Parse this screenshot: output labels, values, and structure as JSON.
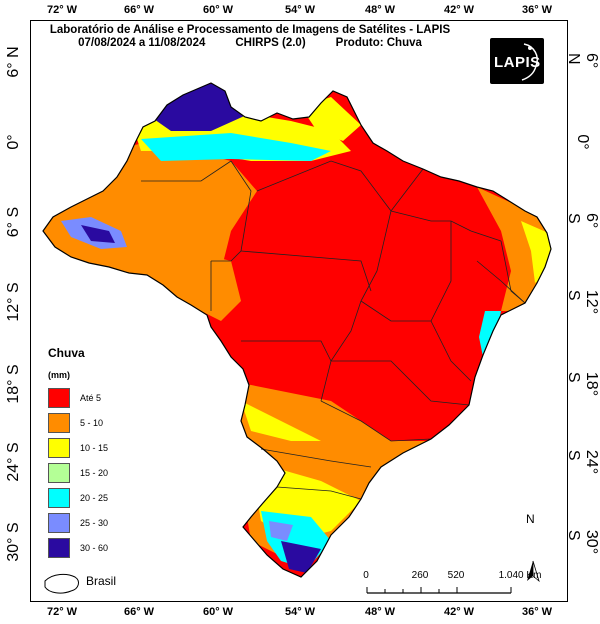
{
  "title": {
    "line1": "Laboratório de Análise e Processamento de Imagens de Satélites - LAPIS",
    "period": "07/08/2024  a 11/08/2024",
    "dataset": "CHIRPS (2.0)",
    "product": "Produto: Chuva"
  },
  "logo": {
    "text": "LAPIS"
  },
  "axes": {
    "longitude_ticks": [
      "72° W",
      "66° W",
      "60° W",
      "54° W",
      "48° W",
      "42° W",
      "36° W"
    ],
    "latitude_ticks": [
      "6° N",
      "0°",
      "6° S",
      "12° S",
      "18° S",
      "24° S",
      "30° S"
    ]
  },
  "legend": {
    "title": "Chuva",
    "unit": "(mm)",
    "classes": [
      {
        "label": "Até 5",
        "color": "#ff0000"
      },
      {
        "label": "5 - 10",
        "color": "#ff8c00"
      },
      {
        "label": "10 - 15",
        "color": "#ffff00"
      },
      {
        "label": "15 - 20",
        "color": "#b4ff96"
      },
      {
        "label": "20 - 25",
        "color": "#00ffff"
      },
      {
        "label": "25 - 30",
        "color": "#7a8cff"
      },
      {
        "label": "30 - 60",
        "color": "#2a0aa0"
      }
    ]
  },
  "outline_legend": {
    "label": "Brasil"
  },
  "scale_bar": {
    "labels": [
      "0",
      "260",
      "520",
      "1.040 Km"
    ]
  },
  "north_arrow": {
    "label": "N"
  }
}
